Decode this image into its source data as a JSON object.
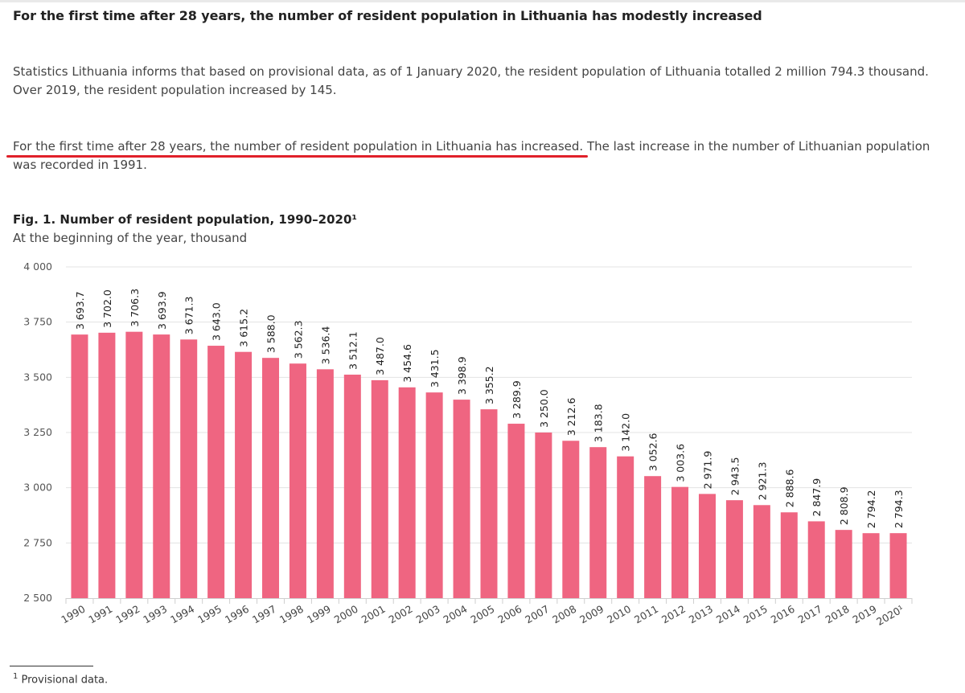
{
  "article": {
    "headline": "For the first time after 28 years, the number of resident population in Lithuania has modestly increased",
    "paragraph1": "Statistics Lithuania informs that based on provisional data, as of 1 January 2020, the resident population of Lithuania totalled 2 million 794.3 thousand. Over 2019, the resident population increased by 145.",
    "paragraph2_highlight": "For the first time after 28 years, the number of resident population in Lithuania has increased.",
    "paragraph2_rest": " The last increase in the number of Lithuanian population was recorded in 1991."
  },
  "figure": {
    "title": "Fig. 1. Number of resident population, 1990–2020¹",
    "subtitle": "At the beginning of the year, thousand"
  },
  "footnote": {
    "marker": "1",
    "text": "Provisional data."
  },
  "colors": {
    "bar": "#ef6581",
    "highlight_underline": "#e0202a",
    "grid": "#e3e3e3"
  },
  "chart_data": {
    "type": "bar",
    "title": "Fig. 1. Number of resident population, 1990–2020¹",
    "subtitle": "At the beginning of the year, thousand",
    "categories": [
      "1990",
      "1991",
      "1992",
      "1993",
      "1994",
      "1995",
      "1996",
      "1997",
      "1998",
      "1999",
      "2000",
      "2001",
      "2002",
      "2003",
      "2004",
      "2005",
      "2006",
      "2007",
      "2008",
      "2009",
      "2010",
      "2011",
      "2012",
      "2013",
      "2014",
      "2015",
      "2016",
      "2017",
      "2018",
      "2019",
      "2020¹"
    ],
    "values": [
      3693.7,
      3702.0,
      3706.3,
      3693.9,
      3671.3,
      3643.0,
      3615.2,
      3588.0,
      3562.3,
      3536.4,
      3512.1,
      3487.0,
      3454.6,
      3431.5,
      3398.9,
      3355.2,
      3289.9,
      3250.0,
      3212.6,
      3183.8,
      3142.0,
      3052.6,
      3003.6,
      2971.9,
      2943.5,
      2921.3,
      2888.6,
      2847.9,
      2808.9,
      2794.2,
      2794.3
    ],
    "value_labels": [
      "3 693.7",
      "3 702.0",
      "3 706.3",
      "3 693.9",
      "3 671.3",
      "3 643.0",
      "3 615.2",
      "3 588.0",
      "3 562.3",
      "3 536.4",
      "3 512.1",
      "3 487.0",
      "3 454.6",
      "3 431.5",
      "3 398.9",
      "3 355.2",
      "3 289.9",
      "3 250.0",
      "3 212.6",
      "3 183.8",
      "3 142.0",
      "3 052.6",
      "3 003.6",
      "2 971.9",
      "2 943.5",
      "2 921.3",
      "2 888.6",
      "2 847.9",
      "2 808.9",
      "2 794.2",
      "2 794.3"
    ],
    "ylim": [
      2500,
      4000
    ],
    "yticks": [
      2500,
      2750,
      3000,
      3250,
      3500,
      3750,
      4000
    ],
    "ytick_labels": [
      "2 500",
      "2 750",
      "3 000",
      "3 250",
      "3 500",
      "3 750",
      "4 000"
    ],
    "grid": true,
    "legend": "none"
  }
}
